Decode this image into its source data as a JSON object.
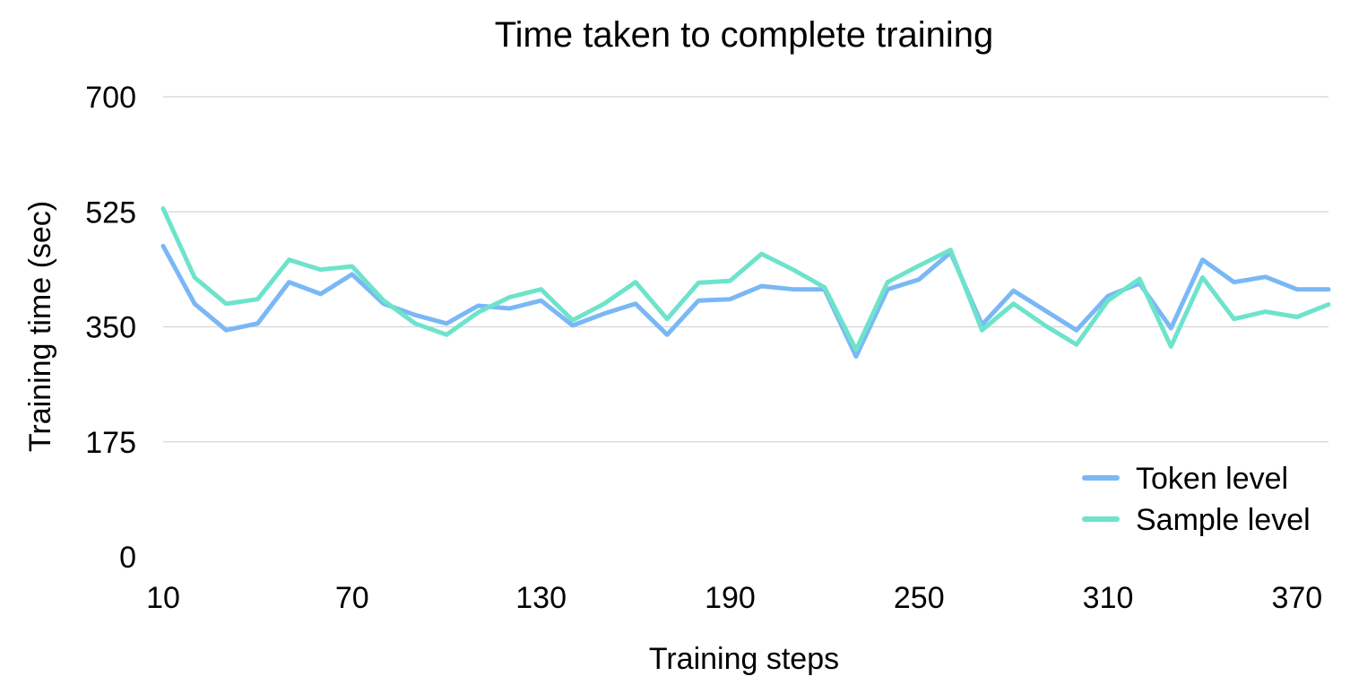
{
  "chart_data": {
    "type": "line",
    "title": "Time taken to complete training",
    "xlabel": "Training steps",
    "ylabel": "Training time (sec)",
    "x": [
      10,
      20,
      30,
      40,
      50,
      60,
      70,
      80,
      90,
      100,
      110,
      120,
      130,
      140,
      150,
      160,
      170,
      180,
      190,
      200,
      210,
      220,
      230,
      240,
      250,
      260,
      270,
      280,
      290,
      300,
      310,
      320,
      330,
      340,
      350,
      360,
      370,
      380
    ],
    "x_ticks": [
      10,
      70,
      130,
      190,
      250,
      310,
      370
    ],
    "xlim": [
      10,
      380
    ],
    "y_ticks": [
      0,
      175,
      350,
      525,
      700
    ],
    "ylim": [
      0,
      700
    ],
    "grid": true,
    "legend_position": "bottom-right",
    "series": [
      {
        "name": "Token level",
        "color": "#7ab8f5",
        "values": [
          473,
          385,
          345,
          355,
          418,
          400,
          430,
          385,
          368,
          355,
          382,
          378,
          390,
          352,
          370,
          385,
          338,
          390,
          392,
          412,
          407,
          407,
          305,
          407,
          422,
          463,
          353,
          405,
          375,
          345,
          397,
          416,
          348,
          452,
          418,
          426,
          407,
          407
        ]
      },
      {
        "name": "Sample level",
        "color": "#6ee3cb",
        "values": [
          530,
          425,
          385,
          392,
          452,
          437,
          442,
          390,
          355,
          338,
          372,
          395,
          407,
          360,
          385,
          418,
          362,
          417,
          420,
          461,
          437,
          410,
          315,
          418,
          443,
          467,
          345,
          385,
          352,
          323,
          390,
          423,
          320,
          425,
          362,
          373,
          365,
          384
        ]
      }
    ]
  }
}
